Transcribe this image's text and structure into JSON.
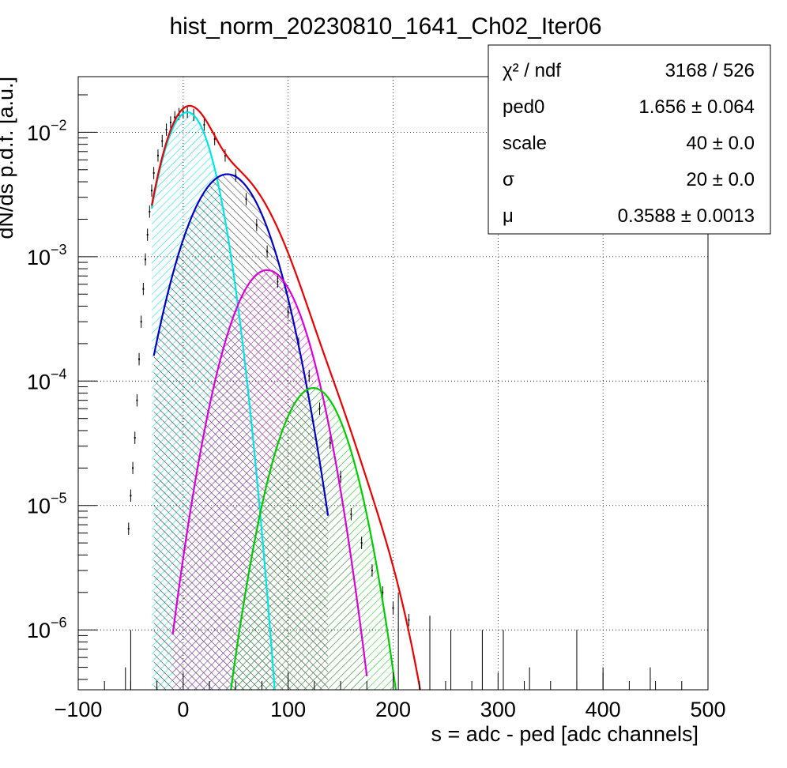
{
  "chart_data": {
    "type": "histogram",
    "title": "hist_norm_20230810_1641_Ch02_Iter06",
    "xlabel": "s = adc - ped [adc channels]",
    "ylabel": "dN/ds p.d.f. [a.u.]",
    "xlim": [
      -100,
      500
    ],
    "ylim": [
      3.3e-07,
      0.028
    ],
    "yscale": "log",
    "grid": true,
    "x_ticks": [
      "−100",
      "0",
      "100",
      "200",
      "300",
      "400",
      "500"
    ],
    "y_ticks": [
      {
        "base": "10",
        "exp": "−2",
        "value": 0.01
      },
      {
        "base": "10",
        "exp": "−3",
        "value": 0.001
      },
      {
        "base": "10",
        "exp": "−4",
        "value": 0.0001
      },
      {
        "base": "10",
        "exp": "−5",
        "value": 1e-05
      },
      {
        "base": "10",
        "exp": "−6",
        "value": 1e-06
      }
    ],
    "stats_box": {
      "position": "top-right",
      "rows": [
        {
          "label": "χ² / ndf",
          "value": "3168 / 526"
        },
        {
          "label": "ped0",
          "value": "1.656 ± 0.064"
        },
        {
          "label": "scale",
          "value": "40 ± 0.0"
        },
        {
          "label": "σ",
          "value": "20 ± 0.0"
        },
        {
          "label": "μ",
          "value": "0.3588 ± 0.0013"
        }
      ]
    },
    "data_points": [
      [
        -52,
        6.5e-06
      ],
      [
        -50,
        1.2e-05
      ],
      [
        -48,
        2e-05
      ],
      [
        -46,
        3.5e-05
      ],
      [
        -44,
        7e-05
      ],
      [
        -42,
        0.00015
      ],
      [
        -40,
        0.0003
      ],
      [
        -38,
        0.00055
      ],
      [
        -36,
        0.00095
      ],
      [
        -34,
        0.0015
      ],
      [
        -32,
        0.0023
      ],
      [
        -30,
        0.0034
      ],
      [
        -28,
        0.0047
      ],
      [
        -24,
        0.0065
      ],
      [
        -20,
        0.0085
      ],
      [
        -16,
        0.0105
      ],
      [
        -12,
        0.012
      ],
      [
        -8,
        0.0132
      ],
      [
        -4,
        0.014
      ],
      [
        0,
        0.0145
      ],
      [
        4,
        0.0146
      ],
      [
        10,
        0.0138
      ],
      [
        20,
        0.0115
      ],
      [
        30,
        0.0088
      ],
      [
        40,
        0.0065
      ],
      [
        50,
        0.0045
      ],
      [
        60,
        0.0029
      ],
      [
        70,
        0.0018
      ],
      [
        80,
        0.0011
      ],
      [
        90,
        0.00063
      ],
      [
        100,
        0.00036
      ],
      [
        110,
        0.0002
      ],
      [
        120,
        0.00011
      ],
      [
        130,
        6e-05
      ],
      [
        140,
        3.2e-05
      ],
      [
        150,
        1.7e-05
      ],
      [
        160,
        8.5e-06
      ],
      [
        170,
        5e-06
      ],
      [
        180,
        3e-06
      ],
      [
        190,
        2e-06
      ],
      [
        200,
        1.5e-06
      ],
      [
        215,
        1.2e-06
      ]
    ],
    "sparse_points": [
      [
        -50,
        1e-06
      ],
      [
        -55,
        5e-07
      ],
      [
        205,
        2e-06
      ],
      [
        235,
        1.3e-06
      ],
      [
        255,
        1e-06
      ],
      [
        285,
        1e-06
      ],
      [
        305,
        1e-06
      ],
      [
        330,
        5e-07
      ],
      [
        375,
        1e-06
      ],
      [
        400,
        5e-07
      ],
      [
        445,
        5e-07
      ]
    ],
    "components": [
      {
        "color": "#00e5e5",
        "amplitude": 0.0145,
        "mean": 4,
        "sigma": 18,
        "x_range": [
          -30,
          95
        ],
        "hatch": "cyan"
      },
      {
        "color": "#0000cc",
        "amplitude": 0.0046,
        "mean": 42,
        "sigma": 27,
        "x_range": [
          -28,
          138
        ],
        "hatch": "black"
      },
      {
        "color": "#dd00dd",
        "amplitude": 0.00078,
        "mean": 80,
        "sigma": 24.5,
        "x_range": [
          -10,
          175
        ],
        "hatch": "magenta"
      },
      {
        "color": "#00cc00",
        "amplitude": 8.8e-05,
        "mean": 124,
        "sigma": 23.5,
        "x_range": [
          40,
          212
        ],
        "hatch": "green"
      }
    ],
    "total_fit": {
      "color": "#ee0000",
      "x_range": [
        -30,
        240
      ]
    }
  }
}
